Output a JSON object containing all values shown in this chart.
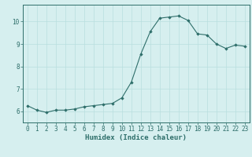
{
  "x": [
    0,
    1,
    2,
    3,
    4,
    5,
    6,
    7,
    8,
    9,
    10,
    11,
    12,
    13,
    14,
    15,
    16,
    17,
    18,
    19,
    20,
    21,
    22,
    23
  ],
  "y": [
    6.25,
    6.05,
    5.95,
    6.05,
    6.05,
    6.1,
    6.2,
    6.25,
    6.3,
    6.35,
    6.6,
    7.3,
    8.55,
    9.55,
    10.15,
    10.2,
    10.25,
    10.05,
    9.45,
    9.4,
    9.0,
    8.8,
    8.95,
    8.9
  ],
  "xlabel": "Humidex (Indice chaleur)",
  "ylim": [
    5.5,
    10.75
  ],
  "xlim": [
    -0.5,
    23.5
  ],
  "yticks": [
    6,
    7,
    8,
    9,
    10
  ],
  "xticks": [
    0,
    1,
    2,
    3,
    4,
    5,
    6,
    7,
    8,
    9,
    10,
    11,
    12,
    13,
    14,
    15,
    16,
    17,
    18,
    19,
    20,
    21,
    22,
    23
  ],
  "line_color": "#2e6e6a",
  "marker_color": "#2e6e6a",
  "bg_color": "#d6efef",
  "grid_color": "#b8dede",
  "axis_color": "#2e6e6a",
  "tick_color": "#2e6e6a",
  "label_color": "#2e6e6a",
  "font_size_ticks": 5.5,
  "font_size_label": 6.5
}
